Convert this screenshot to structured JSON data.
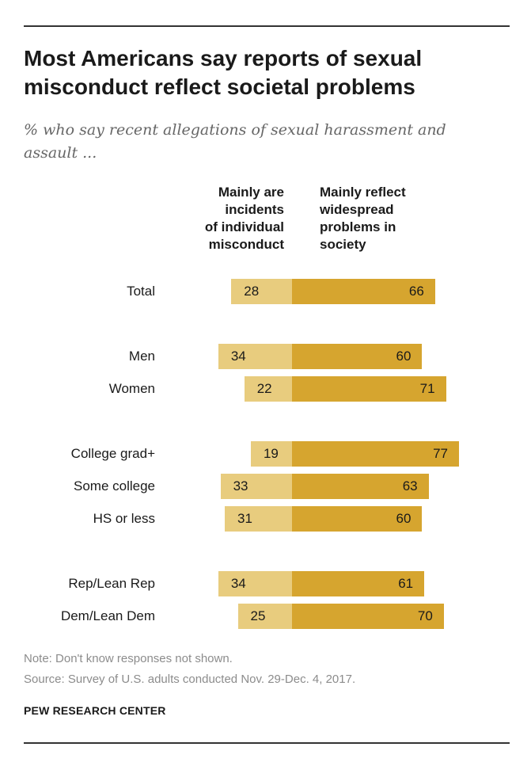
{
  "header": {
    "title": "Most Americans say reports of sexual misconduct reflect societal problems",
    "subtitle": "% who say recent allegations of sexual harassment and assault ..."
  },
  "chart_data": {
    "type": "bar",
    "orientation": "horizontal-diverging",
    "categories": [
      "Total",
      "Men",
      "Women",
      "College grad+",
      "Some college",
      "HS or less",
      "Rep/Lean Rep",
      "Dem/Lean Dem"
    ],
    "groups": [
      [
        "Total"
      ],
      [
        "Men",
        "Women"
      ],
      [
        "College grad+",
        "Some college",
        "HS or less"
      ],
      [
        "Rep/Lean Rep",
        "Dem/Lean Dem"
      ]
    ],
    "series": [
      {
        "name": "Mainly are\nincidents\nof individual\nmisconduct",
        "color": "#e8cc7e",
        "values": [
          28,
          34,
          22,
          19,
          33,
          31,
          34,
          25
        ]
      },
      {
        "name": "Mainly reflect\nwidespread\nproblems in\nsociety",
        "color": "#d6a52f",
        "values": [
          66,
          60,
          71,
          77,
          63,
          60,
          61,
          70
        ]
      }
    ]
  },
  "footer": {
    "note": "Note: Don't know responses not shown.",
    "source": "Source: Survey of U.S. adults conducted Nov. 29-Dec. 4, 2017.",
    "brand": "PEW RESEARCH CENTER"
  }
}
